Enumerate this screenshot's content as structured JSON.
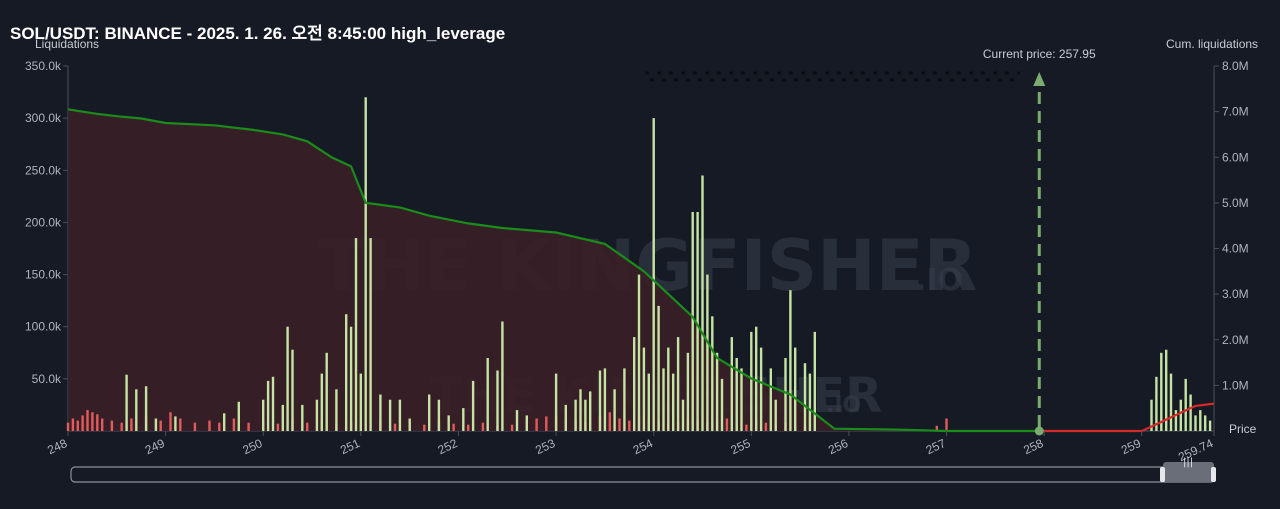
{
  "title": "SOL/USDT: BINANCE - 2025. 1. 26. 오전 8:45:00 high_leverage",
  "watermark": {
    "text": "THE KINGFISHER",
    "suffix": ".IO"
  },
  "chart_data": {
    "type": "bar",
    "y_left_label": "Liquidations",
    "y_right_label": "Cum. liquidations",
    "x_label": "Price",
    "xlim": [
      248,
      259.74
    ],
    "x_ticks": [
      "248",
      "249",
      "250",
      "251",
      "252",
      "253",
      "254",
      "255",
      "256",
      "257",
      "258",
      "259",
      "259.74"
    ],
    "y_left_ticks": [
      "350.0k",
      "300.0k",
      "250.0k",
      "200.0k",
      "150.0k",
      "100.0k",
      "50.0k"
    ],
    "y_left_lim": [
      0,
      350000
    ],
    "y_right_ticks": [
      "8.0M",
      "7.0M",
      "6.0M",
      "5.0M",
      "4.0M",
      "3.0M",
      "2.0M",
      "1.0M"
    ],
    "y_right_lim": [
      0,
      8000000
    ],
    "current_price_label": "Current price: 257.95",
    "current_price": 257.95,
    "colors": {
      "long": "#e05b5b",
      "short": "#c5e3a3",
      "cum_long": "#1a8c1a",
      "cum_short": "#d42a2a",
      "area": "#3a1f28",
      "marker": "#7cab70"
    },
    "long_liquidations": [
      [
        248.0,
        8000
      ],
      [
        248.05,
        12000
      ],
      [
        248.1,
        10000
      ],
      [
        248.15,
        15000
      ],
      [
        248.2,
        20000
      ],
      [
        248.25,
        18000
      ],
      [
        248.3,
        16000
      ],
      [
        248.35,
        12000
      ],
      [
        248.45,
        10000
      ],
      [
        248.55,
        8000
      ],
      [
        248.65,
        12000
      ],
      [
        248.8,
        15000
      ],
      [
        248.95,
        10000
      ],
      [
        249.05,
        18000
      ],
      [
        249.15,
        12000
      ],
      [
        249.3,
        8000
      ],
      [
        249.45,
        10000
      ],
      [
        249.55,
        8000
      ],
      [
        249.7,
        12000
      ],
      [
        249.85,
        8000
      ],
      [
        250.0,
        9000
      ],
      [
        250.15,
        7000
      ],
      [
        250.3,
        10000
      ],
      [
        250.45,
        8000
      ],
      [
        250.6,
        12000
      ],
      [
        250.75,
        7000
      ],
      [
        250.9,
        9000
      ],
      [
        251.05,
        8000
      ],
      [
        251.2,
        10000
      ],
      [
        251.35,
        7000
      ],
      [
        251.5,
        8000
      ],
      [
        251.65,
        6000
      ],
      [
        251.8,
        9000
      ],
      [
        251.95,
        7000
      ],
      [
        252.1,
        6000
      ],
      [
        252.25,
        8000
      ],
      [
        252.4,
        5000
      ],
      [
        252.55,
        6000
      ],
      [
        252.7,
        10000
      ],
      [
        252.8,
        12000
      ],
      [
        252.9,
        14000
      ],
      [
        253.0,
        15000
      ],
      [
        253.1,
        12000
      ],
      [
        253.2,
        10000
      ],
      [
        253.3,
        8000
      ],
      [
        253.45,
        14000
      ],
      [
        253.55,
        18000
      ],
      [
        253.65,
        12000
      ],
      [
        253.75,
        10000
      ],
      [
        253.85,
        15000
      ],
      [
        253.95,
        12000
      ],
      [
        254.05,
        10000
      ],
      [
        254.15,
        8000
      ],
      [
        254.25,
        9000
      ],
      [
        254.35,
        12000
      ],
      [
        254.45,
        10000
      ],
      [
        254.55,
        8000
      ],
      [
        254.65,
        10000
      ],
      [
        254.75,
        12000
      ],
      [
        254.85,
        8000
      ],
      [
        254.95,
        6000
      ],
      [
        255.05,
        10000
      ],
      [
        255.15,
        8000
      ],
      [
        255.25,
        6000
      ],
      [
        255.35,
        8000
      ],
      [
        255.45,
        5000
      ],
      [
        255.55,
        4000
      ],
      [
        256.9,
        5000
      ],
      [
        257.0,
        12000
      ]
    ],
    "short_liquidations": [
      [
        248.6,
        54000
      ],
      [
        248.7,
        40000
      ],
      [
        248.8,
        43000
      ],
      [
        248.9,
        12000
      ],
      [
        249.1,
        14000
      ],
      [
        249.6,
        17000
      ],
      [
        249.75,
        28000
      ],
      [
        250.0,
        30000
      ],
      [
        250.05,
        48000
      ],
      [
        250.1,
        52000
      ],
      [
        250.2,
        25000
      ],
      [
        250.25,
        100000
      ],
      [
        250.3,
        78000
      ],
      [
        250.4,
        25000
      ],
      [
        250.55,
        30000
      ],
      [
        250.6,
        55000
      ],
      [
        250.65,
        75000
      ],
      [
        250.75,
        40000
      ],
      [
        250.85,
        112000
      ],
      [
        250.9,
        100000
      ],
      [
        250.95,
        185000
      ],
      [
        251.0,
        55000
      ],
      [
        251.05,
        320000
      ],
      [
        251.1,
        185000
      ],
      [
        251.2,
        35000
      ],
      [
        251.3,
        30000
      ],
      [
        251.4,
        30000
      ],
      [
        251.5,
        12000
      ],
      [
        251.7,
        35000
      ],
      [
        251.8,
        30000
      ],
      [
        251.9,
        15000
      ],
      [
        252.05,
        22000
      ],
      [
        252.15,
        48000
      ],
      [
        252.3,
        70000
      ],
      [
        252.4,
        58000
      ],
      [
        252.45,
        105000
      ],
      [
        252.6,
        20000
      ],
      [
        252.7,
        15000
      ],
      [
        253.0,
        55000
      ],
      [
        253.1,
        25000
      ],
      [
        253.2,
        30000
      ],
      [
        253.25,
        40000
      ],
      [
        253.3,
        30000
      ],
      [
        253.35,
        38000
      ],
      [
        253.45,
        58000
      ],
      [
        253.5,
        60000
      ],
      [
        253.6,
        40000
      ],
      [
        253.7,
        60000
      ],
      [
        253.8,
        90000
      ],
      [
        253.85,
        150000
      ],
      [
        253.9,
        80000
      ],
      [
        253.95,
        55000
      ],
      [
        254.0,
        300000
      ],
      [
        254.05,
        120000
      ],
      [
        254.1,
        60000
      ],
      [
        254.15,
        80000
      ],
      [
        254.2,
        55000
      ],
      [
        254.25,
        90000
      ],
      [
        254.3,
        30000
      ],
      [
        254.35,
        75000
      ],
      [
        254.4,
        210000
      ],
      [
        254.45,
        210000
      ],
      [
        254.5,
        245000
      ],
      [
        254.55,
        150000
      ],
      [
        254.6,
        110000
      ],
      [
        254.65,
        75000
      ],
      [
        254.7,
        50000
      ],
      [
        254.8,
        90000
      ],
      [
        254.85,
        70000
      ],
      [
        254.9,
        60000
      ],
      [
        255.0,
        95000
      ],
      [
        255.05,
        100000
      ],
      [
        255.1,
        80000
      ],
      [
        255.2,
        60000
      ],
      [
        255.25,
        30000
      ],
      [
        255.35,
        70000
      ],
      [
        255.4,
        135000
      ],
      [
        255.45,
        80000
      ],
      [
        255.55,
        65000
      ],
      [
        255.6,
        55000
      ],
      [
        255.65,
        95000
      ],
      [
        259.1,
        30000
      ],
      [
        259.15,
        52000
      ],
      [
        259.2,
        75000
      ],
      [
        259.25,
        78000
      ],
      [
        259.3,
        55000
      ],
      [
        259.35,
        20000
      ],
      [
        259.4,
        30000
      ],
      [
        259.45,
        50000
      ],
      [
        259.5,
        35000
      ],
      [
        259.55,
        15000
      ],
      [
        259.6,
        20000
      ],
      [
        259.65,
        15000
      ],
      [
        259.7,
        10000
      ]
    ],
    "cum_long_line": [
      [
        248.0,
        7.05
      ],
      [
        248.3,
        6.95
      ],
      [
        248.5,
        6.9
      ],
      [
        248.75,
        6.85
      ],
      [
        249.0,
        6.75
      ],
      [
        249.5,
        6.7
      ],
      [
        249.9,
        6.6
      ],
      [
        250.2,
        6.5
      ],
      [
        250.45,
        6.35
      ],
      [
        250.7,
        6.0
      ],
      [
        250.9,
        5.8
      ],
      [
        251.05,
        5.0
      ],
      [
        251.4,
        4.9
      ],
      [
        251.7,
        4.72
      ],
      [
        252.1,
        4.55
      ],
      [
        252.45,
        4.45
      ],
      [
        253.0,
        4.35
      ],
      [
        253.5,
        4.1
      ],
      [
        253.9,
        3.5
      ],
      [
        254.15,
        3.0
      ],
      [
        254.4,
        2.5
      ],
      [
        254.65,
        1.6
      ],
      [
        255.0,
        1.15
      ],
      [
        255.4,
        0.8
      ],
      [
        255.7,
        0.3
      ],
      [
        255.85,
        0.05
      ],
      [
        256.5,
        0.03
      ],
      [
        257.0,
        0.0
      ],
      [
        257.95,
        0.0
      ]
    ],
    "cum_short_line": [
      [
        257.95,
        0.0
      ],
      [
        259.0,
        0.0
      ],
      [
        259.15,
        0.15
      ],
      [
        259.35,
        0.35
      ],
      [
        259.55,
        0.55
      ],
      [
        259.74,
        0.6
      ]
    ]
  }
}
